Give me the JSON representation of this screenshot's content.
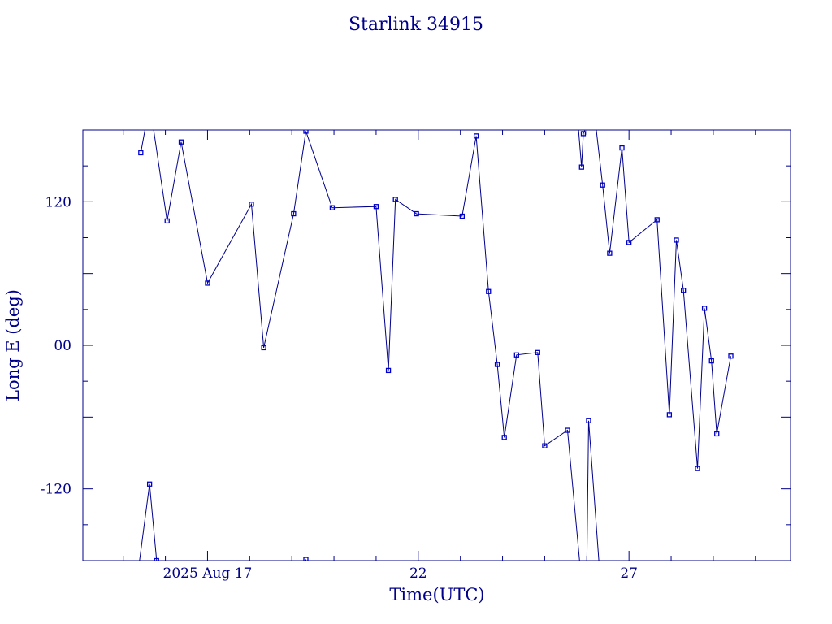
{
  "chart_data": {
    "type": "line",
    "title": "Starlink 34915",
    "xlabel": "Time(UTC)",
    "ylabel": "Long E (deg)",
    "xlim": [
      "2025-08-14T01:00",
      "2025-08-30T20:00"
    ],
    "ylim": [
      -180,
      180
    ],
    "x_ticks": [
      {
        "label": "2025 Aug 17",
        "x": "2025-08-17T00:00"
      },
      {
        "label": "22",
        "x": "2025-08-22T00:00"
      },
      {
        "label": "27",
        "x": "2025-08-27T00:00"
      }
    ],
    "y_ticks": [
      {
        "label": "120",
        "value": 120
      },
      {
        "label": "00",
        "value": 0
      },
      {
        "label": "-120",
        "value": -120
      }
    ],
    "grid": false,
    "marker": "square",
    "series_color": "#0000cd",
    "axis_color": "#00008b",
    "series": [
      {
        "points": [
          {
            "x": "2025-08-15T10:00",
            "y": 161
          },
          {
            "x": "2025-08-15T13:00",
            "y": 185
          },
          {
            "x": "2025-08-15T17:00",
            "y": 183
          },
          {
            "x": "2025-08-16T01:00",
            "y": 104
          },
          {
            "x": "2025-08-16T09:00",
            "y": 170
          },
          {
            "x": "2025-08-17T00:00",
            "y": 52
          },
          {
            "x": "2025-08-18T01:00",
            "y": 118
          },
          {
            "x": "2025-08-18T08:00",
            "y": -2
          },
          {
            "x": "2025-08-19T01:00",
            "y": 110
          },
          {
            "x": "2025-08-19T08:00",
            "y": 179
          },
          {
            "x": "2025-08-19T23:00",
            "y": 115
          },
          {
            "x": "2025-08-21T00:00",
            "y": 116
          },
          {
            "x": "2025-08-21T07:00",
            "y": -21
          },
          {
            "x": "2025-08-21T11:00",
            "y": 122
          },
          {
            "x": "2025-08-21T23:00",
            "y": 110
          },
          {
            "x": "2025-08-23T01:00",
            "y": 108
          },
          {
            "x": "2025-08-23T09:00",
            "y": 175
          },
          {
            "x": "2025-08-23T16:00",
            "y": 45
          },
          {
            "x": "2025-08-23T21:00",
            "y": -16
          },
          {
            "x": "2025-08-24T01:00",
            "y": -77
          },
          {
            "x": "2025-08-24T08:00",
            "y": -8
          },
          {
            "x": "2025-08-24T20:00",
            "y": -6
          },
          {
            "x": "2025-08-25T00:00",
            "y": -84
          },
          {
            "x": "2025-08-25T13:00",
            "y": -71
          },
          {
            "x": "2025-08-25T20:00",
            "y": -182
          }
        ]
      },
      {
        "points": [
          {
            "x": "2025-08-15T09:00",
            "y": -183
          },
          {
            "x": "2025-08-15T15:00",
            "y": -116
          },
          {
            "x": "2025-08-15T19:00",
            "y": -180
          }
        ]
      },
      {
        "points": [
          {
            "x": "2025-08-19T08:00",
            "y": -179
          },
          {
            "x": "2025-08-19T08:00",
            "y": -183
          }
        ]
      },
      {
        "points": [
          {
            "x": "2025-08-25T19:00",
            "y": 185
          },
          {
            "x": "2025-08-25T21:00",
            "y": 149
          },
          {
            "x": "2025-08-25T22:00",
            "y": 177
          },
          {
            "x": "2025-08-26T00:00",
            "y": 183
          },
          {
            "x": "2025-08-26T05:00",
            "y": 185
          },
          {
            "x": "2025-08-26T09:00",
            "y": 134
          },
          {
            "x": "2025-08-26T13:00",
            "y": 77
          },
          {
            "x": "2025-08-26T20:00",
            "y": 165
          },
          {
            "x": "2025-08-27T00:00",
            "y": 86
          },
          {
            "x": "2025-08-27T16:00",
            "y": 105
          },
          {
            "x": "2025-08-27T23:00",
            "y": -58
          },
          {
            "x": "2025-08-28T03:00",
            "y": 88
          },
          {
            "x": "2025-08-28T07:00",
            "y": 46
          },
          {
            "x": "2025-08-28T15:00",
            "y": -103
          },
          {
            "x": "2025-08-28T19:00",
            "y": 31
          },
          {
            "x": "2025-08-28T23:00",
            "y": -13
          },
          {
            "x": "2025-08-29T02:00",
            "y": -74
          },
          {
            "x": "2025-08-29T10:00",
            "y": -9
          }
        ]
      },
      {
        "points": [
          {
            "x": "2025-08-26T00:00",
            "y": -183
          },
          {
            "x": "2025-08-26T01:00",
            "y": -63
          },
          {
            "x": "2025-08-26T07:00",
            "y": -183
          }
        ]
      }
    ]
  }
}
